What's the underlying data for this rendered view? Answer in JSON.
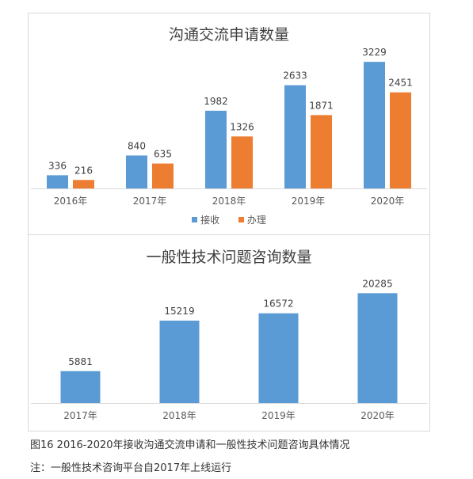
{
  "chart_data": [
    {
      "type": "bar",
      "title": "沟通交流申请数量",
      "categories": [
        "2016年",
        "2017年",
        "2018年",
        "2019年",
        "2020年"
      ],
      "series": [
        {
          "name": "接收",
          "values": [
            336,
            840,
            1982,
            2633,
            3229
          ],
          "color": "#5b9bd5"
        },
        {
          "name": "办理",
          "values": [
            216,
            635,
            1326,
            1871,
            2451
          ],
          "color": "#ed7d31"
        }
      ],
      "ylim": [
        0,
        3500
      ],
      "legend": "bottom",
      "grid": false
    },
    {
      "type": "bar",
      "title": "一般性技术问题咨询数量",
      "categories": [
        "2017年",
        "2018年",
        "2019年",
        "2020年"
      ],
      "series": [
        {
          "values": [
            5881,
            15219,
            16572,
            20285
          ],
          "color": "#5b9bd5"
        }
      ],
      "ylim": [
        0,
        22000
      ],
      "grid": false
    }
  ],
  "captions": {
    "figure": "图16  2016-2020年接收沟通交流申请和一般性技术问题咨询具体情况",
    "note": "注：一般性技术咨询平台自2017年上线运行"
  }
}
